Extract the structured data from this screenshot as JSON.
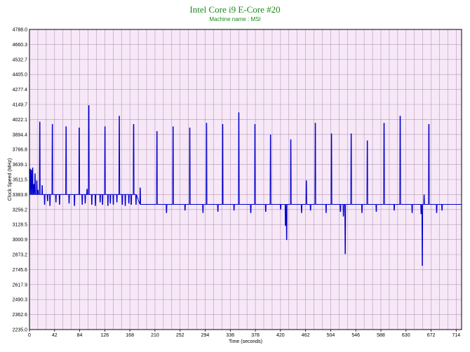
{
  "chart_data": {
    "type": "line",
    "title": "Intel Core i9 E-Core #20",
    "subtitle": "Machine name : MSI",
    "xlabel": "Time (seconds)",
    "ylabel": "Clock Speed (MHz)",
    "xlim": [
      0,
      723
    ],
    "ylim": [
      2235.0,
      4788.0
    ],
    "x_ticks": [
      "0",
      "42",
      "84",
      "126",
      "168",
      "210",
      "252",
      "294",
      "336",
      "378",
      "420",
      "462",
      "504",
      "546",
      "588",
      "630",
      "672",
      "714"
    ],
    "y_ticks": [
      "4788.0",
      "4660.3",
      "4532.7",
      "4405.0",
      "4277.4",
      "4149.7",
      "4022.1",
      "3894.4",
      "3766.8",
      "3639.1",
      "3511.5",
      "3383.8",
      "3256.2",
      "3128.5",
      "3000.9",
      "2873.2",
      "2745.6",
      "2617.9",
      "2490.3",
      "2362.6",
      "2235.0"
    ],
    "grid": true,
    "plot_background": "#f7e8f8",
    "grid_color": "#b798b7",
    "line_color": "#0000cc",
    "title_color": "#1a8a1a",
    "series": [
      {
        "baseline_segments": [
          [
            0,
            180,
            3383.8
          ],
          [
            180,
            723,
            3300.0
          ]
        ],
        "spikes": [
          {
            "x": 1,
            "y": 3600
          },
          {
            "x": 3,
            "y": 3590
          },
          {
            "x": 5,
            "y": 3610
          },
          {
            "x": 7,
            "y": 3470
          },
          {
            "x": 9,
            "y": 3560
          },
          {
            "x": 12,
            "y": 3500
          },
          {
            "x": 14,
            "y": 3420
          },
          {
            "x": 17,
            "y": 4000
          },
          {
            "x": 21,
            "y": 3460
          },
          {
            "x": 25,
            "y": 3300
          },
          {
            "x": 30,
            "y": 3330
          },
          {
            "x": 34,
            "y": 3290
          },
          {
            "x": 38,
            "y": 3980
          },
          {
            "x": 44,
            "y": 3320
          },
          {
            "x": 50,
            "y": 3300
          },
          {
            "x": 61,
            "y": 3960
          },
          {
            "x": 66,
            "y": 3310
          },
          {
            "x": 75,
            "y": 3290
          },
          {
            "x": 83,
            "y": 3950
          },
          {
            "x": 88,
            "y": 3300
          },
          {
            "x": 93,
            "y": 3310
          },
          {
            "x": 96,
            "y": 3430
          },
          {
            "x": 99,
            "y": 4140
          },
          {
            "x": 104,
            "y": 3300
          },
          {
            "x": 110,
            "y": 3290
          },
          {
            "x": 118,
            "y": 3320
          },
          {
            "x": 122,
            "y": 3300
          },
          {
            "x": 126,
            "y": 3960
          },
          {
            "x": 131,
            "y": 3290
          },
          {
            "x": 135,
            "y": 3310
          },
          {
            "x": 140,
            "y": 3300
          },
          {
            "x": 146,
            "y": 3320
          },
          {
            "x": 150,
            "y": 4050
          },
          {
            "x": 155,
            "y": 3300
          },
          {
            "x": 160,
            "y": 3290
          },
          {
            "x": 166,
            "y": 3310
          },
          {
            "x": 170,
            "y": 3300
          },
          {
            "x": 174,
            "y": 3980
          },
          {
            "x": 178,
            "y": 3300
          },
          {
            "x": 185,
            "y": 3440
          },
          {
            "x": 190,
            "y": 3300
          },
          {
            "x": 213,
            "y": 3920
          },
          {
            "x": 229,
            "y": 3230
          },
          {
            "x": 240,
            "y": 3960
          },
          {
            "x": 260,
            "y": 3250
          },
          {
            "x": 268,
            "y": 3950
          },
          {
            "x": 290,
            "y": 3230
          },
          {
            "x": 296,
            "y": 3990
          },
          {
            "x": 315,
            "y": 3240
          },
          {
            "x": 323,
            "y": 3980
          },
          {
            "x": 342,
            "y": 3250
          },
          {
            "x": 350,
            "y": 4080
          },
          {
            "x": 370,
            "y": 3230
          },
          {
            "x": 377,
            "y": 3980
          },
          {
            "x": 395,
            "y": 3240
          },
          {
            "x": 403,
            "y": 3890
          },
          {
            "x": 420,
            "y": 3260
          },
          {
            "x": 428,
            "y": 3120
          },
          {
            "x": 430,
            "y": 3000
          },
          {
            "x": 437,
            "y": 3850
          },
          {
            "x": 455,
            "y": 3230
          },
          {
            "x": 463,
            "y": 3500
          },
          {
            "x": 470,
            "y": 3250
          },
          {
            "x": 478,
            "y": 3990
          },
          {
            "x": 496,
            "y": 3230
          },
          {
            "x": 505,
            "y": 3900
          },
          {
            "x": 520,
            "y": 3240
          },
          {
            "x": 525,
            "y": 3200
          },
          {
            "x": 528,
            "y": 2880
          },
          {
            "x": 538,
            "y": 3900
          },
          {
            "x": 556,
            "y": 3230
          },
          {
            "x": 565,
            "y": 3840
          },
          {
            "x": 580,
            "y": 3240
          },
          {
            "x": 593,
            "y": 3990
          },
          {
            "x": 610,
            "y": 3250
          },
          {
            "x": 620,
            "y": 4050
          },
          {
            "x": 640,
            "y": 3230
          },
          {
            "x": 655,
            "y": 3220
          },
          {
            "x": 657,
            "y": 2780
          },
          {
            "x": 660,
            "y": 3380
          },
          {
            "x": 668,
            "y": 3980
          },
          {
            "x": 681,
            "y": 3230
          },
          {
            "x": 690,
            "y": 3250
          }
        ]
      }
    ]
  }
}
